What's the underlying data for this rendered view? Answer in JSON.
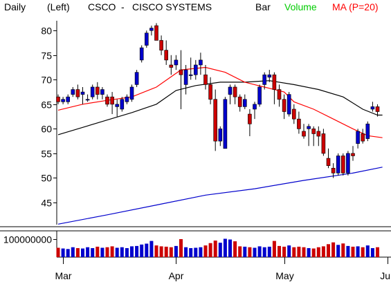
{
  "header": {
    "period": "Daily",
    "axis_side": "(Left)",
    "symbol": "CSCO",
    "separator": "-",
    "company": "CISCO SYSTEMS",
    "chart_style": "Bar",
    "volume_label": "Volume",
    "ma_label": "MA (P=20)"
  },
  "colors": {
    "up": "#0000cc",
    "down": "#cc0000",
    "volume_label": "#00cc00",
    "ma_label": "#ff0000",
    "ma20": "#ff0000",
    "ma50": "#000000",
    "ma200": "#0000cc",
    "axis": "#000000"
  },
  "chart_data": [
    {
      "type": "candlestick",
      "title": "CSCO - CISCO SYSTEMS",
      "y_ticks": [
        45,
        50,
        55,
        60,
        65,
        70,
        75,
        80
      ],
      "ylim": [
        40.5,
        82
      ],
      "x_tick_labels": [
        "Mar",
        "Apr",
        "May",
        "Jun"
      ],
      "x_tick_index": [
        1,
        24,
        46,
        67
      ],
      "ohlc": [
        [
          66.5,
          67,
          65,
          65.5
        ],
        [
          65.5,
          66.5,
          65,
          66
        ],
        [
          65.5,
          67,
          65,
          66.5
        ],
        [
          67,
          68.5,
          66.5,
          68
        ],
        [
          68,
          69,
          66,
          66.5
        ],
        [
          67,
          68.5,
          65,
          67.5
        ],
        [
          66,
          67,
          65.5,
          66
        ],
        [
          66.5,
          69,
          66,
          68.5
        ],
        [
          68.5,
          69.5,
          66,
          67
        ],
        [
          67,
          68.5,
          66,
          68
        ],
        [
          66.5,
          67,
          64.5,
          65
        ],
        [
          66.5,
          67.5,
          63,
          65
        ],
        [
          64.5,
          66,
          62.5,
          65
        ],
        [
          64,
          66.5,
          63.5,
          66
        ],
        [
          65.5,
          67,
          65,
          66.5
        ],
        [
          66,
          69,
          65.5,
          68.5
        ],
        [
          69,
          72,
          68.5,
          71.5
        ],
        [
          74,
          77,
          73.5,
          76.5
        ],
        [
          77,
          80,
          76.5,
          79.5
        ],
        [
          80,
          81,
          79,
          80.5
        ],
        [
          81,
          81.5,
          78,
          78
        ],
        [
          78,
          79,
          75,
          76
        ],
        [
          76,
          78,
          73,
          74
        ],
        [
          73,
          75,
          71,
          72.5
        ],
        [
          73,
          75,
          72,
          74
        ],
        [
          72,
          76,
          64,
          71
        ],
        [
          69,
          73,
          67,
          72
        ],
        [
          71,
          74.5,
          70,
          71
        ],
        [
          71,
          74,
          70,
          73
        ],
        [
          73,
          75.5,
          71,
          74
        ],
        [
          71,
          73,
          68,
          69
        ],
        [
          69,
          70.5,
          65,
          66
        ],
        [
          66,
          68,
          55.5,
          57.5
        ],
        [
          57.5,
          60.5,
          56.5,
          60
        ],
        [
          56,
          66.5,
          56,
          66
        ],
        [
          67,
          69,
          65,
          68.5
        ],
        [
          68.5,
          69,
          65,
          66.5
        ],
        [
          66.5,
          67,
          63.5,
          64.5
        ],
        [
          64.5,
          67,
          64,
          66
        ],
        [
          63,
          64,
          58.5,
          61
        ],
        [
          64,
          65.5,
          62,
          65
        ],
        [
          65,
          69,
          64.5,
          68.5
        ],
        [
          69,
          71.5,
          68,
          71
        ],
        [
          70.5,
          72,
          69.5,
          71
        ],
        [
          71,
          71.5,
          65,
          68
        ],
        [
          68,
          69,
          64.5,
          66
        ],
        [
          66,
          67,
          62,
          63.5
        ],
        [
          63,
          67.5,
          62.5,
          67
        ],
        [
          64,
          65,
          61,
          62
        ],
        [
          62,
          63.5,
          59,
          60
        ],
        [
          59.5,
          61,
          58,
          58.5
        ],
        [
          60,
          61,
          56.5,
          60.5
        ],
        [
          60,
          60.5,
          56.5,
          59
        ],
        [
          59.5,
          60.5,
          56.5,
          58.5
        ],
        [
          59,
          60,
          54.5,
          55
        ],
        [
          54,
          56,
          52,
          52.5
        ],
        [
          52,
          53,
          50,
          51
        ],
        [
          51,
          55,
          50.5,
          54.5
        ],
        [
          54.5,
          55,
          50.5,
          51
        ],
        [
          51,
          55.5,
          50.5,
          55
        ],
        [
          55,
          56.5,
          53.5,
          54.5
        ],
        [
          57,
          60,
          56,
          59.5
        ],
        [
          59,
          60,
          57,
          57.5
        ],
        [
          58,
          61.5,
          57.5,
          61
        ],
        [
          64,
          65.5,
          63.5,
          64.5
        ],
        [
          64.5,
          65,
          62.5,
          63.5
        ]
      ],
      "volume": [
        0.52,
        0.48,
        0.45,
        0.55,
        0.5,
        0.48,
        0.55,
        0.5,
        0.58,
        0.52,
        0.55,
        0.6,
        0.52,
        0.55,
        0.5,
        0.6,
        0.62,
        0.7,
        0.75,
        0.9,
        0.65,
        0.6,
        0.58,
        0.55,
        0.62,
        1.0,
        0.55,
        0.5,
        0.52,
        0.55,
        0.65,
        0.78,
        0.92,
        0.8,
        1.02,
        0.98,
        0.88,
        0.6,
        0.58,
        0.55,
        0.52,
        0.6,
        0.55,
        0.58,
        0.9,
        0.62,
        0.58,
        0.65,
        0.55,
        0.58,
        0.55,
        0.5,
        0.48,
        0.55,
        0.6,
        0.72,
        0.82,
        0.68,
        0.76,
        0.62,
        0.58,
        0.6,
        0.55,
        0.65,
        0.5,
        0.55
      ],
      "volume_tick": "100000000",
      "ma20": [
        [
          0,
          63.8
        ],
        [
          5,
          65
        ],
        [
          10,
          65.8
        ],
        [
          15,
          66.5
        ],
        [
          20,
          68.5
        ],
        [
          25,
          72
        ],
        [
          30,
          72.5
        ],
        [
          34,
          71.5
        ],
        [
          38,
          69.5
        ],
        [
          42,
          68.5
        ],
        [
          46,
          67.5
        ],
        [
          48,
          65.5
        ],
        [
          52,
          64
        ],
        [
          56,
          62
        ],
        [
          60,
          60
        ],
        [
          63,
          58.6
        ],
        [
          66,
          58.2
        ]
      ],
      "ma50": [
        [
          0,
          58.8
        ],
        [
          5,
          60.3
        ],
        [
          10,
          61.8
        ],
        [
          15,
          63.3
        ],
        [
          20,
          65
        ],
        [
          24,
          67.8
        ],
        [
          28,
          68.8
        ],
        [
          33,
          69.5
        ],
        [
          38,
          69.5
        ],
        [
          43,
          69.8
        ],
        [
          48,
          69
        ],
        [
          53,
          68
        ],
        [
          58,
          66.5
        ],
        [
          62,
          64
        ],
        [
          65,
          62.8
        ],
        [
          66,
          62.8
        ]
      ],
      "ma200": [
        [
          0,
          40.6
        ],
        [
          10,
          42.5
        ],
        [
          20,
          44.5
        ],
        [
          30,
          46.5
        ],
        [
          40,
          47.8
        ],
        [
          50,
          49.5
        ],
        [
          60,
          51
        ],
        [
          66,
          52.2
        ]
      ]
    }
  ]
}
